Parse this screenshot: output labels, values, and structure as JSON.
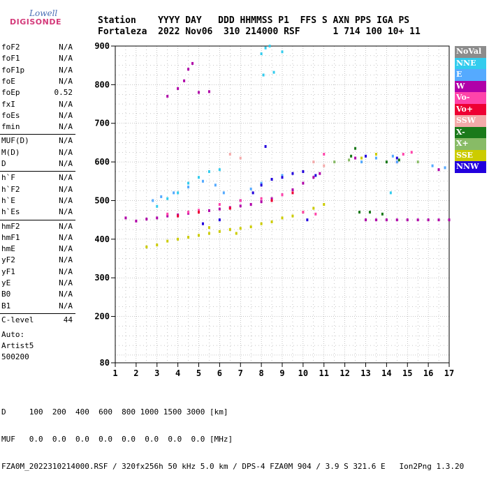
{
  "logo": {
    "line1": "Lowell",
    "line2": "DIGISONDE"
  },
  "header": {
    "line1": "Station    YYYY DAY   DDD HHMMSS P1  FFS S AXN PPS IGA PS",
    "line2": "Fortaleza  2022 Nov06  310 214000 RSF      1 714 100 10+ 11"
  },
  "params": [
    {
      "name": "foF2",
      "value": "N/A"
    },
    {
      "name": "foF1",
      "value": "N/A"
    },
    {
      "name": "foF1p",
      "value": "N/A"
    },
    {
      "name": "foE",
      "value": "N/A"
    },
    {
      "name": "foEp",
      "value": "0.52"
    },
    {
      "name": "fxI",
      "value": "N/A"
    },
    {
      "name": "foEs",
      "value": "N/A"
    },
    {
      "name": "fmin",
      "value": "N/A"
    },
    {
      "name": "MUF(D)",
      "value": "N/A"
    },
    {
      "name": "M(D)",
      "value": "N/A"
    },
    {
      "name": "D",
      "value": "N/A"
    },
    {
      "name": "h`F",
      "value": "N/A"
    },
    {
      "name": "h`F2",
      "value": "N/A"
    },
    {
      "name": "h`E",
      "value": "N/A"
    },
    {
      "name": "h`Es",
      "value": "N/A"
    },
    {
      "name": "hmF2",
      "value": "N/A"
    },
    {
      "name": "hmF1",
      "value": "N/A"
    },
    {
      "name": "hmE",
      "value": "N/A"
    },
    {
      "name": "yF2",
      "value": "N/A"
    },
    {
      "name": "yF1",
      "value": "N/A"
    },
    {
      "name": "yE",
      "value": "N/A"
    },
    {
      "name": "B0",
      "value": "N/A"
    },
    {
      "name": "B1",
      "value": "N/A"
    },
    {
      "name": "C-level",
      "value": "44"
    }
  ],
  "auto": {
    "line1": "Auto:",
    "line2": "Artist5",
    "line3": "500200"
  },
  "legend": [
    {
      "label": "NoVal",
      "color": "#8c8c8c"
    },
    {
      "label": "NNE",
      "color": "#33ccee"
    },
    {
      "label": "E",
      "color": "#55aaff"
    },
    {
      "label": "W",
      "color": "#b000a8"
    },
    {
      "label": "Vo-",
      "color": "#ff44aa"
    },
    {
      "label": "Vo+",
      "color": "#ee0033"
    },
    {
      "label": "SSW",
      "color": "#f4aaaa"
    },
    {
      "label": "X-",
      "color": "#1a7a1a"
    },
    {
      "label": "X+",
      "color": "#88bb66"
    },
    {
      "label": "SSE",
      "color": "#cccc00"
    },
    {
      "label": "NNW",
      "color": "#2200dd"
    }
  ],
  "bottom": {
    "line1": "D     100  200  400  600  800 1000 1500 3000 [km]",
    "line2": "MUF   0.0  0.0  0.0  0.0  0.0  0.0  0.0  0.0 [MHz]",
    "line3": "FZA0M_2022310214000.RSF / 320fx256h 50 kHz 5.0 km / DPS-4 FZA0M 904 / 3.9 S 321.6 E   Ion2Png 1.3.20"
  },
  "chart_data": {
    "type": "scatter",
    "xlim": [
      1,
      17
    ],
    "ylim": [
      80,
      900
    ],
    "xticks": [
      "1",
      "2",
      "3",
      "4",
      "5",
      "6",
      "7",
      "8",
      "9",
      "10",
      "11",
      "12",
      "13",
      "14",
      "15",
      "16",
      "17"
    ],
    "yticks": [
      "80",
      "200",
      "300",
      "400",
      "500",
      "600",
      "700",
      "800",
      "900"
    ],
    "grid": true,
    "series": [
      {
        "name": "W",
        "color": "#b000a8",
        "points": [
          [
            1.5,
            455
          ],
          [
            2,
            447
          ],
          [
            2.5,
            452
          ],
          [
            3,
            455
          ],
          [
            3.5,
            460
          ],
          [
            4,
            463
          ],
          [
            4.5,
            467
          ],
          [
            5,
            470
          ],
          [
            5.5,
            474
          ],
          [
            6,
            478
          ],
          [
            6.5,
            482
          ],
          [
            7,
            486
          ],
          [
            7.5,
            490
          ],
          [
            8,
            497
          ],
          [
            8.5,
            505
          ],
          [
            9,
            515
          ],
          [
            9.5,
            528
          ],
          [
            10,
            545
          ],
          [
            10.5,
            560
          ],
          [
            10.8,
            570
          ],
          [
            3.5,
            770
          ],
          [
            4,
            790
          ],
          [
            4.3,
            810
          ],
          [
            4.5,
            840
          ],
          [
            4.7,
            855
          ],
          [
            5,
            780
          ],
          [
            5.5,
            782
          ],
          [
            13,
            450
          ],
          [
            13.5,
            450
          ],
          [
            14,
            450
          ],
          [
            14.5,
            450
          ],
          [
            15,
            450
          ],
          [
            15.5,
            450
          ],
          [
            16,
            450
          ],
          [
            16.5,
            450
          ],
          [
            17,
            450
          ],
          [
            16.5,
            580
          ],
          [
            14.5,
            600
          ],
          [
            12.5,
            610
          ]
        ]
      },
      {
        "name": "NNE",
        "color": "#33ccee",
        "points": [
          [
            3,
            485
          ],
          [
            3.5,
            505
          ],
          [
            4,
            520
          ],
          [
            4.5,
            545
          ],
          [
            5,
            560
          ],
          [
            5.5,
            575
          ],
          [
            6,
            580
          ],
          [
            8,
            880
          ],
          [
            8.2,
            895
          ],
          [
            8.4,
            900
          ],
          [
            9,
            885
          ],
          [
            8.1,
            825
          ],
          [
            8.6,
            832
          ],
          [
            14.2,
            520
          ]
        ]
      },
      {
        "name": "E",
        "color": "#55aaff",
        "points": [
          [
            2.8,
            500
          ],
          [
            3.2,
            510
          ],
          [
            3.8,
            520
          ],
          [
            4.5,
            535
          ],
          [
            5.2,
            550
          ],
          [
            5.8,
            540
          ],
          [
            6.2,
            520
          ],
          [
            7.5,
            530
          ],
          [
            8,
            545
          ],
          [
            8.5,
            555
          ],
          [
            9,
            565
          ],
          [
            12.8,
            600
          ],
          [
            13.5,
            610
          ],
          [
            14.3,
            615
          ],
          [
            14.5,
            600
          ],
          [
            16.2,
            590
          ],
          [
            16.8,
            585
          ]
        ]
      },
      {
        "name": "SSE",
        "color": "#cccc00",
        "points": [
          [
            2.5,
            380
          ],
          [
            3,
            385
          ],
          [
            3.5,
            395
          ],
          [
            4,
            400
          ],
          [
            4.5,
            405
          ],
          [
            5,
            410
          ],
          [
            5.5,
            415
          ],
          [
            6,
            420
          ],
          [
            6.5,
            425
          ],
          [
            7,
            428
          ],
          [
            7.5,
            432
          ],
          [
            8,
            440
          ],
          [
            8.5,
            445
          ],
          [
            9,
            455
          ],
          [
            9.5,
            460
          ],
          [
            10,
            470
          ],
          [
            10.5,
            480
          ],
          [
            11,
            490
          ],
          [
            6.8,
            415
          ],
          [
            5.5,
            430
          ],
          [
            12.8,
            610
          ],
          [
            13.5,
            620
          ]
        ]
      },
      {
        "name": "NNW",
        "color": "#2200dd",
        "points": [
          [
            5.2,
            440
          ],
          [
            6,
            450
          ],
          [
            7,
            500
          ],
          [
            7.6,
            520
          ],
          [
            8,
            540
          ],
          [
            8.5,
            555
          ],
          [
            9,
            560
          ],
          [
            9.5,
            570
          ],
          [
            10,
            575
          ],
          [
            10.6,
            565
          ],
          [
            8.2,
            640
          ],
          [
            13,
            615
          ],
          [
            14.5,
            610
          ],
          [
            10.2,
            450
          ]
        ]
      },
      {
        "name": "Vo-",
        "color": "#ff44aa",
        "points": [
          [
            3.5,
            465
          ],
          [
            4.5,
            470
          ],
          [
            5,
            475
          ],
          [
            6,
            490
          ],
          [
            7,
            500
          ],
          [
            8,
            505
          ],
          [
            9,
            515
          ],
          [
            10,
            470
          ],
          [
            10.6,
            465
          ],
          [
            11,
            620
          ],
          [
            14.8,
            620
          ],
          [
            15.2,
            625
          ]
        ]
      },
      {
        "name": "X-",
        "color": "#1a7a1a",
        "points": [
          [
            12.3,
            615
          ],
          [
            12.5,
            635
          ],
          [
            12.7,
            470
          ],
          [
            13.2,
            470
          ],
          [
            13.8,
            465
          ],
          [
            14,
            600
          ],
          [
            14.6,
            605
          ]
        ]
      },
      {
        "name": "X+",
        "color": "#88bb66",
        "points": [
          [
            11.5,
            600
          ],
          [
            12.2,
            605
          ],
          [
            15.5,
            600
          ]
        ]
      },
      {
        "name": "Vo+",
        "color": "#ee0033",
        "points": [
          [
            4,
            460
          ],
          [
            5,
            470
          ],
          [
            6.5,
            480
          ],
          [
            8.5,
            500
          ],
          [
            9.5,
            520
          ]
        ]
      },
      {
        "name": "SSW",
        "color": "#f4aaaa",
        "points": [
          [
            6.5,
            620
          ],
          [
            7,
            610
          ],
          [
            10.5,
            600
          ],
          [
            11,
            590
          ]
        ]
      }
    ]
  }
}
